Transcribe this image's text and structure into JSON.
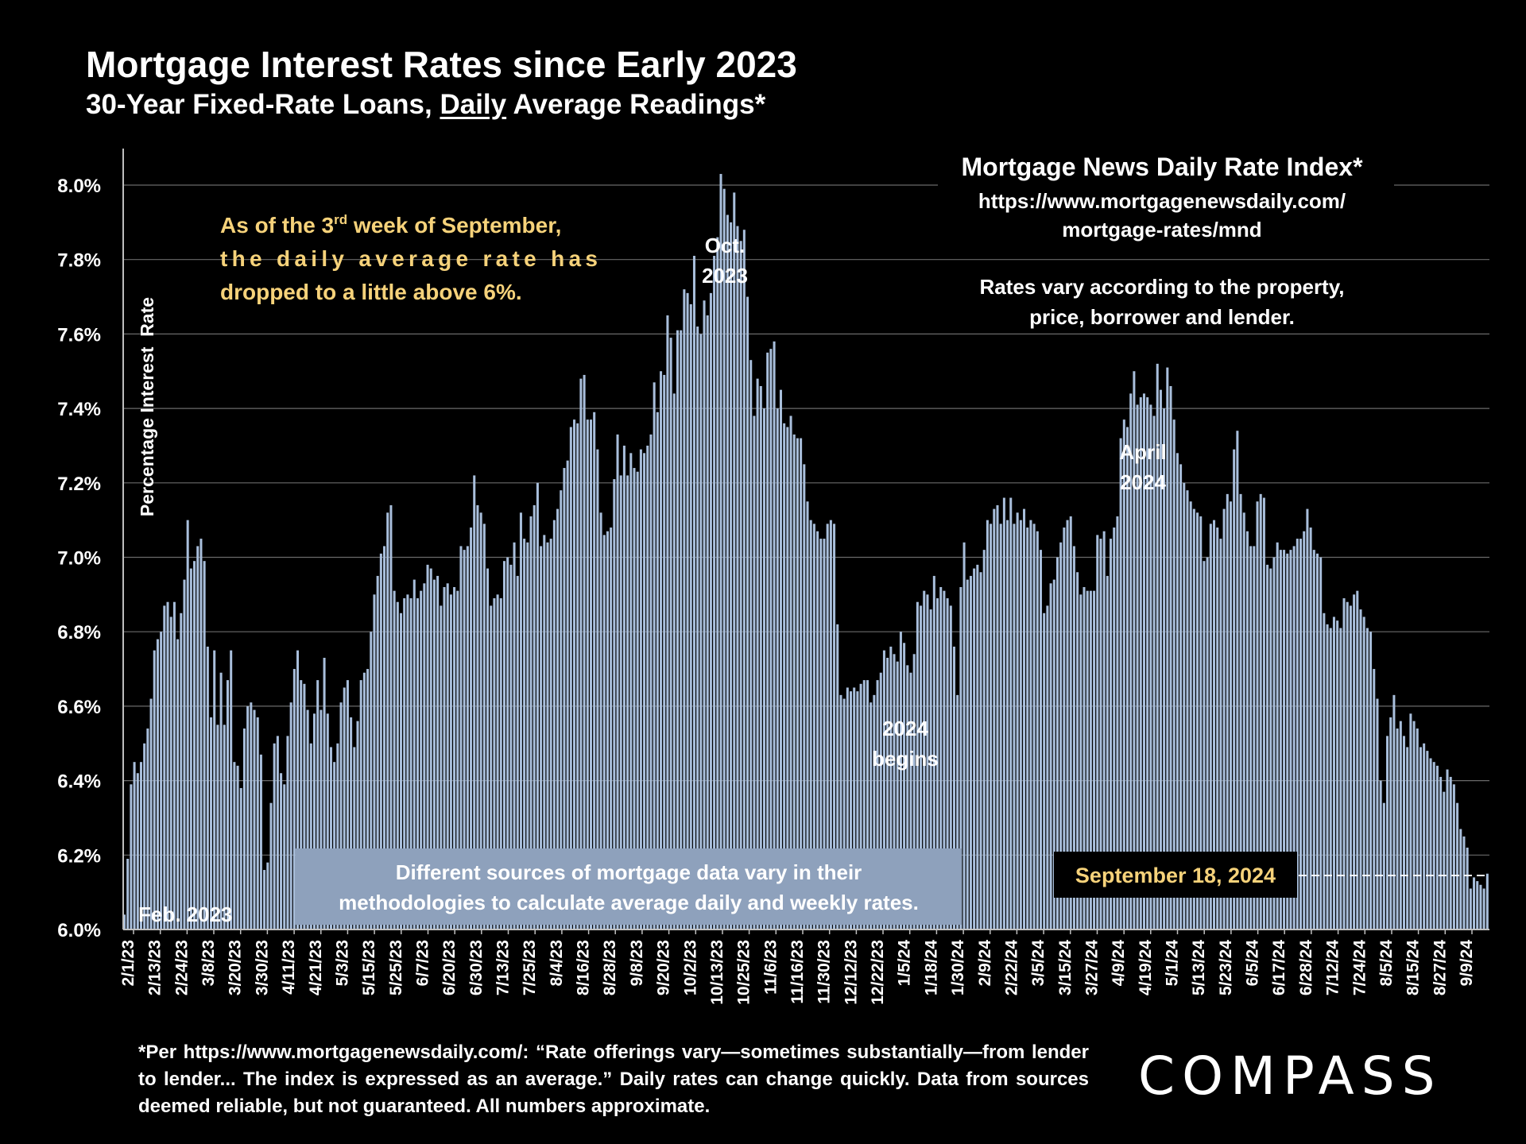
{
  "title": "Mortgage Interest Rates since Early 2023",
  "subtitle_pre": "30-Year Fixed-Rate Loans, ",
  "subtitle_underlined": "Daily",
  "subtitle_post": " Average Readings*",
  "footnote": "*Per https://www.mortgagenewsdaily.com/: “Rate offerings vary—sometimes substantially—from lender to lender... The index is expressed as an average.” Daily rates can change quickly. Data from sources deemed reliable, but not guaranteed. All numbers approximate.",
  "logo": "COMPASS",
  "colors": {
    "bar": "#a9bfdc",
    "bar_edge": "#6f85a6",
    "grid": "#6a6a6a",
    "callout": "#f6d27a",
    "box_blue": "#8ea1bc",
    "label_white": "#ffffff"
  },
  "chart_data": {
    "type": "bar",
    "title": "Mortgage Interest Rates since Early 2023",
    "ylabel": "Percentage Interest  Rate",
    "ylim": [
      6.0,
      8.1
    ],
    "yticks": [
      6.0,
      6.2,
      6.4,
      6.6,
      6.8,
      7.0,
      7.2,
      7.4,
      7.6,
      7.8,
      8.0
    ],
    "ytick_labels": [
      "6.0%",
      "6.2%",
      "6.4%",
      "6.6%",
      "6.8%",
      "7.0%",
      "7.2%",
      "7.4%",
      "7.6%",
      "7.8%",
      "8.0%"
    ],
    "grid": true,
    "x_tick_labels": [
      "2/1/23",
      "2/13/23",
      "2/24/23",
      "3/8/23",
      "3/20/23",
      "3/30/23",
      "4/11/23",
      "4/21/23",
      "5/3/23",
      "5/15/23",
      "5/25/23",
      "6/7/23",
      "6/20/23",
      "6/30/23",
      "7/13/23",
      "7/25/23",
      "8/4/23",
      "8/16/23",
      "8/28/23",
      "9/8/23",
      "9/20/23",
      "10/2/23",
      "10/13/23",
      "10/25/23",
      "11/6/23",
      "11/16/23",
      "11/30/23",
      "12/12/23",
      "12/22/23",
      "1/5/24",
      "1/18/24",
      "1/30/24",
      "2/9/24",
      "2/22/24",
      "3/5/24",
      "3/15/24",
      "3/27/24",
      "4/9/24",
      "4/19/24",
      "5/1/24",
      "5/13/24",
      "5/23/24",
      "6/5/24",
      "6/17/24",
      "6/28/24",
      "7/12/24",
      "7/24/24",
      "8/5/24",
      "8/15/24",
      "8/27/24",
      "9/9/24"
    ],
    "values": [
      6.04,
      6.19,
      6.39,
      6.45,
      6.42,
      6.45,
      6.5,
      6.54,
      6.62,
      6.75,
      6.78,
      6.8,
      6.87,
      6.88,
      6.84,
      6.88,
      6.78,
      6.85,
      6.94,
      7.1,
      6.97,
      6.99,
      7.03,
      7.05,
      6.99,
      6.76,
      6.57,
      6.75,
      6.55,
      6.69,
      6.55,
      6.67,
      6.75,
      6.45,
      6.44,
      6.38,
      6.54,
      6.6,
      6.61,
      6.59,
      6.57,
      6.47,
      6.16,
      6.18,
      6.34,
      6.5,
      6.52,
      6.42,
      6.39,
      6.52,
      6.61,
      6.7,
      6.75,
      6.67,
      6.66,
      6.59,
      6.5,
      6.58,
      6.67,
      6.59,
      6.73,
      6.58,
      6.49,
      6.45,
      6.5,
      6.61,
      6.65,
      6.67,
      6.57,
      6.49,
      6.56,
      6.67,
      6.69,
      6.7,
      6.8,
      6.9,
      6.95,
      7.01,
      7.03,
      7.12,
      7.14,
      6.91,
      6.88,
      6.85,
      6.89,
      6.9,
      6.89,
      6.94,
      6.89,
      6.91,
      6.93,
      6.98,
      6.97,
      6.94,
      6.95,
      6.87,
      6.92,
      6.93,
      6.9,
      6.92,
      6.91,
      7.03,
      7.02,
      7.03,
      7.08,
      7.22,
      7.14,
      7.12,
      7.09,
      6.97,
      6.87,
      6.89,
      6.9,
      6.89,
      6.99,
      7.0,
      6.98,
      7.04,
      6.95,
      7.12,
      7.05,
      7.04,
      7.11,
      7.14,
      7.2,
      7.03,
      7.06,
      7.04,
      7.05,
      7.1,
      7.13,
      7.18,
      7.24,
      7.26,
      7.35,
      7.37,
      7.36,
      7.48,
      7.49,
      7.37,
      7.37,
      7.39,
      7.29,
      7.12,
      7.06,
      7.07,
      7.08,
      7.21,
      7.33,
      7.22,
      7.3,
      7.22,
      7.28,
      7.24,
      7.23,
      7.29,
      7.28,
      7.3,
      7.33,
      7.47,
      7.39,
      7.5,
      7.49,
      7.65,
      7.59,
      7.44,
      7.61,
      7.61,
      7.72,
      7.71,
      7.68,
      7.81,
      7.62,
      7.6,
      7.69,
      7.65,
      7.71,
      7.81,
      7.86,
      8.03,
      7.99,
      7.92,
      7.9,
      7.98,
      7.89,
      7.85,
      7.88,
      7.7,
      7.53,
      7.38,
      7.48,
      7.46,
      7.4,
      7.55,
      7.56,
      7.58,
      7.4,
      7.45,
      7.36,
      7.35,
      7.38,
      7.33,
      7.32,
      7.32,
      7.25,
      7.15,
      7.1,
      7.09,
      7.07,
      7.05,
      7.05,
      7.09,
      7.1,
      7.09,
      6.82,
      6.63,
      6.62,
      6.65,
      6.64,
      6.65,
      6.64,
      6.66,
      6.67,
      6.67,
      6.61,
      6.63,
      6.67,
      6.69,
      6.75,
      6.73,
      6.76,
      6.74,
      6.72,
      6.8,
      6.77,
      6.71,
      6.69,
      6.74,
      6.88,
      6.87,
      6.91,
      6.9,
      6.86,
      6.95,
      6.89,
      6.92,
      6.91,
      6.89,
      6.87,
      6.76,
      6.63,
      6.92,
      7.04,
      6.94,
      6.95,
      6.97,
      6.98,
      6.96,
      7.02,
      7.1,
      7.09,
      7.13,
      7.14,
      7.09,
      7.16,
      7.1,
      7.16,
      7.09,
      7.12,
      7.1,
      7.13,
      7.08,
      7.1,
      7.09,
      7.07,
      7.02,
      6.85,
      6.87,
      6.93,
      6.94,
      7.0,
      7.04,
      7.08,
      7.1,
      7.11,
      7.03,
      6.96,
      6.9,
      6.92,
      6.91,
      6.91,
      6.91,
      7.06,
      7.05,
      7.07,
      6.95,
      7.05,
      7.08,
      7.11,
      7.32,
      7.37,
      7.35,
      7.44,
      7.5,
      7.41,
      7.43,
      7.44,
      7.43,
      7.41,
      7.38,
      7.52,
      7.45,
      7.4,
      7.51,
      7.46,
      7.37,
      7.28,
      7.25,
      7.2,
      7.18,
      7.15,
      7.13,
      7.12,
      7.11,
      6.99,
      7.0,
      7.09,
      7.1,
      7.08,
      7.05,
      7.13,
      7.17,
      7.15,
      7.29,
      7.34,
      7.17,
      7.12,
      7.07,
      7.03,
      7.03,
      7.15,
      7.17,
      7.16,
      6.98,
      6.97,
      7.0,
      7.04,
      7.02,
      7.02,
      7.01,
      7.02,
      7.03,
      7.05,
      7.05,
      7.07,
      7.13,
      7.08,
      7.02,
      7.01,
      7.0,
      6.85,
      6.82,
      6.81,
      6.84,
      6.83,
      6.81,
      6.89,
      6.88,
      6.87,
      6.9,
      6.91,
      6.86,
      6.84,
      6.81,
      6.8,
      6.7,
      6.62,
      6.4,
      6.34,
      6.52,
      6.57,
      6.63,
      6.54,
      6.56,
      6.52,
      6.49,
      6.58,
      6.56,
      6.54,
      6.49,
      6.5,
      6.48,
      6.46,
      6.45,
      6.44,
      6.41,
      6.37,
      6.43,
      6.41,
      6.39,
      6.34,
      6.27,
      6.25,
      6.22,
      6.11,
      6.14,
      6.13,
      6.12,
      6.11,
      6.15
    ],
    "annotations": {
      "callout_1": "As of the 3",
      "callout_sup": "rd",
      "callout_2": " week of September,",
      "callout_3": "the daily average rate has",
      "callout_4": "dropped to a little above 6%.",
      "oct_1": "Oct.",
      "oct_2": "2023",
      "begins_1": "2024",
      "begins_2": "begins",
      "april_1": "April",
      "april_2": "2024",
      "feb": "Feb. 2023",
      "index_title": "Mortgage News Daily Rate Index*",
      "index_url_1": "https://www.mortgagenewsdaily.com/",
      "index_url_2": "mortgage-rates/mnd",
      "vary_1": "Rates vary according to the property,",
      "vary_2": "price, borrower and lender.",
      "box_1": "Different sources of mortgage data vary in their",
      "box_2": "methodologies to calculate average daily and weekly rates.",
      "sept": "September 18, 2024"
    }
  }
}
